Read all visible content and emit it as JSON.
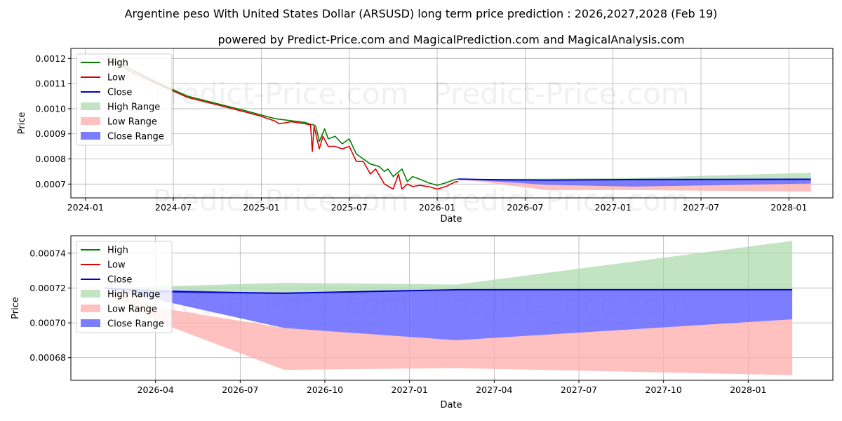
{
  "title": "Argentine peso With United States Dollar (ARSUSD) long term price prediction : 2026,2027,2028 (Feb 19)",
  "subtitle": "powered by Predict-Price.com and MagicalPrediction.com and MagicalAnalysis.com",
  "watermark": "Predict-Price.com",
  "colors": {
    "high": "#008000",
    "low": "#dd0000",
    "close": "#0000cc",
    "high_range": "#a8d8a8",
    "low_range": "#ffb0b0",
    "close_range": "#6666ff"
  },
  "legend": [
    "High",
    "Low",
    "Close",
    "High Range",
    "Low Range",
    "Close Range"
  ],
  "chart_data": [
    {
      "type": "line",
      "xlabel": "Date",
      "ylabel": "Price",
      "xlim": [
        2023.917,
        2028.25
      ],
      "ylim": [
        0.000645,
        0.00124
      ],
      "xticks": [
        {
          "v": 2024.0,
          "label": "2024-01"
        },
        {
          "v": 2024.5,
          "label": "2024-07"
        },
        {
          "v": 2025.0,
          "label": "2025-01"
        },
        {
          "v": 2025.5,
          "label": "2025-07"
        },
        {
          "v": 2026.0,
          "label": "2026-01"
        },
        {
          "v": 2026.5,
          "label": "2026-07"
        },
        {
          "v": 2027.0,
          "label": "2027-01"
        },
        {
          "v": 2027.5,
          "label": "2027-07"
        },
        {
          "v": 2028.0,
          "label": "2028-01"
        }
      ],
      "yticks": [
        {
          "v": 0.0007,
          "label": "0.0007"
        },
        {
          "v": 0.0008,
          "label": "0.0008"
        },
        {
          "v": 0.0009,
          "label": "0.0009"
        },
        {
          "v": 0.001,
          "label": "0.0010"
        },
        {
          "v": 0.0011,
          "label": "0.0011"
        },
        {
          "v": 0.0012,
          "label": "0.0012"
        }
      ],
      "series": [
        {
          "name": "High",
          "x": [
            2024.125,
            2024.25,
            2024.42,
            2024.58,
            2024.75,
            2024.92,
            2025.0,
            2025.08,
            2025.17,
            2025.25,
            2025.28,
            2025.3,
            2025.31,
            2025.33,
            2025.36,
            2025.38,
            2025.42,
            2025.46,
            2025.5,
            2025.54,
            2025.58,
            2025.62,
            2025.67,
            2025.7,
            2025.72,
            2025.75,
            2025.8,
            2025.83,
            2025.86,
            2025.9,
            2025.95,
            2026.0,
            2026.05,
            2026.1,
            2026.12
          ],
          "values": [
            0.00121,
            0.00116,
            0.0011,
            0.00105,
            0.00102,
            0.00099,
            0.000975,
            0.00096,
            0.000952,
            0.000945,
            0.000938,
            0.000935,
            0.00093,
            0.00087,
            0.00092,
            0.00088,
            0.00089,
            0.00086,
            0.00088,
            0.00082,
            0.0008,
            0.00078,
            0.00077,
            0.00075,
            0.00076,
            0.00073,
            0.00076,
            0.00071,
            0.00073,
            0.00072,
            0.000705,
            0.000695,
            0.000705,
            0.000718,
            0.00072
          ]
        },
        {
          "name": "Low",
          "x": [
            2024.125,
            2024.25,
            2024.42,
            2024.58,
            2024.75,
            2024.92,
            2025.0,
            2025.08,
            2025.1,
            2025.17,
            2025.25,
            2025.28,
            2025.29,
            2025.3,
            2025.33,
            2025.35,
            2025.38,
            2025.42,
            2025.46,
            2025.5,
            2025.54,
            2025.58,
            2025.62,
            2025.65,
            2025.7,
            2025.75,
            2025.78,
            2025.8,
            2025.83,
            2025.86,
            2025.9,
            2025.95,
            2026.0,
            2026.05,
            2026.1,
            2026.12
          ],
          "values": [
            0.0012,
            0.00115,
            0.001095,
            0.001045,
            0.001015,
            0.000985,
            0.00097,
            0.00095,
            0.00094,
            0.000948,
            0.00094,
            0.000935,
            0.00083,
            0.00093,
            0.00084,
            0.00089,
            0.00085,
            0.00085,
            0.00084,
            0.00085,
            0.00079,
            0.00079,
            0.00074,
            0.00076,
            0.0007,
            0.00068,
            0.00074,
            0.00068,
            0.0007,
            0.00069,
            0.000695,
            0.00069,
            0.00068,
            0.00069,
            0.000708,
            0.00071
          ]
        },
        {
          "name": "Close",
          "x": [
            2026.12,
            2026.25,
            2026.375,
            2026.625,
            2027.125,
            2028.125
          ],
          "values": [
            0.00072,
            0.000718,
            0.000717,
            0.000716,
            0.000718,
            0.000719
          ]
        }
      ],
      "ranges": [
        {
          "name": "High Range",
          "x": [
            2026.12,
            2026.625,
            2027.125,
            2028.125
          ],
          "lower": [
            0.00072,
            0.000717,
            0.000718,
            0.000719
          ],
          "upper": [
            0.00072,
            0.000722,
            0.000725,
            0.000745
          ]
        },
        {
          "name": "Low Range",
          "x": [
            2026.12,
            2026.625,
            2027.125,
            2028.125
          ],
          "lower": [
            0.00072,
            0.000676,
            0.000676,
            0.00067
          ],
          "upper": [
            0.00072,
            0.000697,
            0.000692,
            0.000702
          ]
        },
        {
          "name": "Close Range",
          "x": [
            2026.12,
            2026.625,
            2027.125,
            2028.125
          ],
          "lower": [
            0.00072,
            0.000697,
            0.00069,
            0.000702
          ],
          "upper": [
            0.00072,
            0.000717,
            0.000718,
            0.000719
          ]
        }
      ]
    },
    {
      "type": "line",
      "xlabel": "Date",
      "ylabel": "Price",
      "xlim": [
        2026.0,
        2028.25
      ],
      "ylim": [
        0.000667,
        0.00075
      ],
      "xticks": [
        {
          "v": 2026.25,
          "label": "2026-04"
        },
        {
          "v": 2026.5,
          "label": "2026-07"
        },
        {
          "v": 2026.75,
          "label": "2026-10"
        },
        {
          "v": 2027.0,
          "label": "2027-01"
        },
        {
          "v": 2027.25,
          "label": "2027-04"
        },
        {
          "v": 2027.5,
          "label": "2027-07"
        },
        {
          "v": 2027.75,
          "label": "2027-10"
        },
        {
          "v": 2028.0,
          "label": "2028-01"
        }
      ],
      "yticks": [
        {
          "v": 0.00068,
          "label": "0.00068"
        },
        {
          "v": 0.0007,
          "label": "0.00070"
        },
        {
          "v": 0.00072,
          "label": "0.00072"
        },
        {
          "v": 0.00074,
          "label": "0.00074"
        }
      ],
      "series": [
        {
          "name": "High",
          "x": [],
          "values": []
        },
        {
          "name": "Low",
          "x": [],
          "values": []
        },
        {
          "name": "Close",
          "x": [
            2026.1,
            2026.25,
            2026.63,
            2027.14,
            2028.13
          ],
          "values": [
            0.00072,
            0.000718,
            0.000717,
            0.000719,
            0.000719
          ]
        }
      ],
      "ranges": [
        {
          "name": "High Range",
          "x": [
            2026.1,
            2026.63,
            2027.14,
            2028.13
          ],
          "lower": [
            0.00072,
            0.000717,
            0.000719,
            0.000719
          ],
          "upper": [
            0.00072,
            0.000723,
            0.000722,
            0.000747
          ]
        },
        {
          "name": "Low Range",
          "x": [
            2026.1,
            2026.25,
            2026.63,
            2027.14,
            2028.13
          ],
          "lower": [
            0.00072,
            0.000701,
            0.000673,
            0.000674,
            0.00067
          ],
          "upper": [
            0.00072,
            0.000709,
            0.000697,
            0.00069,
            0.000702
          ]
        },
        {
          "name": "Close Range",
          "x": [
            2026.1,
            2026.63,
            2027.14,
            2028.13
          ],
          "lower": [
            0.00072,
            0.000697,
            0.00069,
            0.000702
          ],
          "upper": [
            0.00072,
            0.000717,
            0.000719,
            0.000719
          ]
        }
      ]
    }
  ]
}
